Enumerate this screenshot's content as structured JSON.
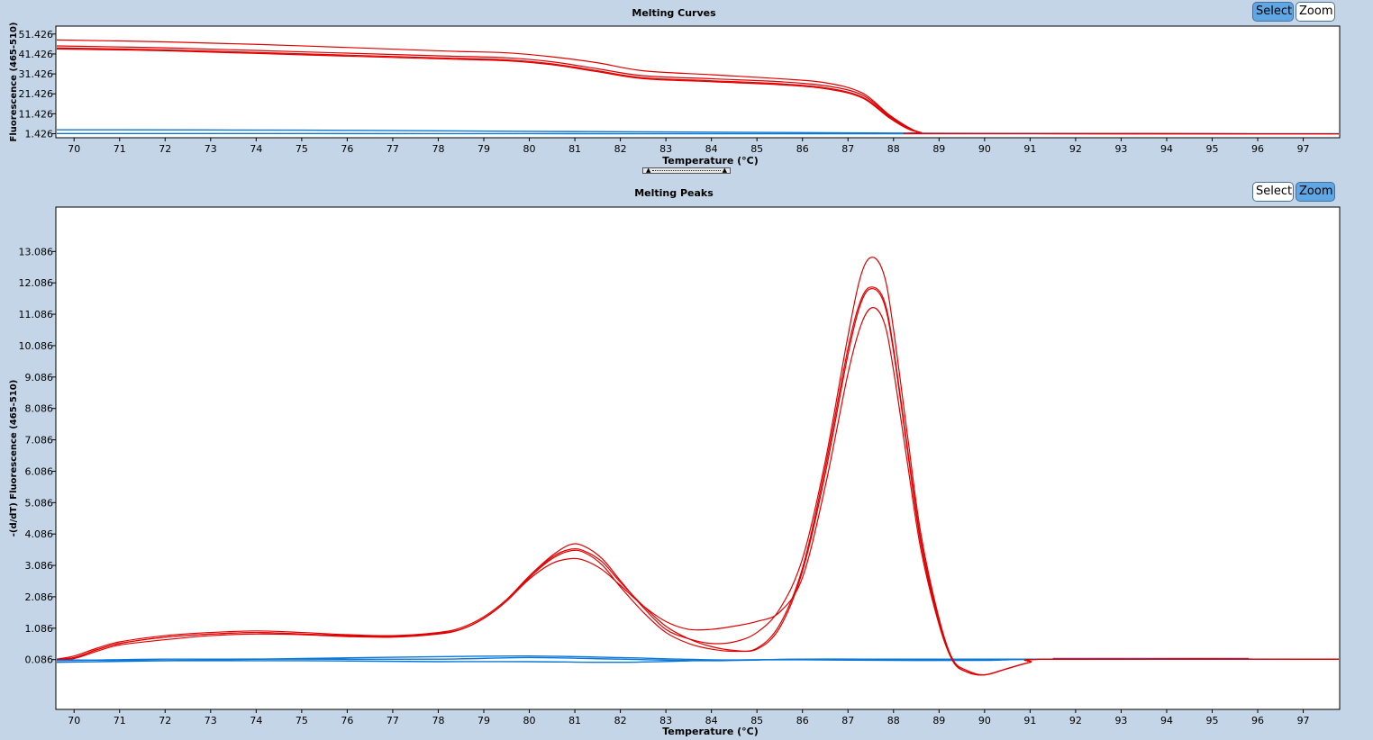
{
  "top_panel": {
    "title": "Melting Curves",
    "select_label": "Select",
    "zoom_label": "Zoom",
    "active_mode": "select"
  },
  "bottom_panel": {
    "title": "Melting Peaks",
    "select_label": "Select",
    "zoom_label": "Zoom",
    "active_mode": "zoom"
  },
  "colors": {
    "background": "#c3d5e6",
    "sample_red": "#e00000",
    "sample_blue": "#0a78d8",
    "sample_purple": "#8040a0",
    "button_active": "#5fa6e5"
  },
  "chart_data": [
    {
      "type": "line",
      "title": "Melting Curves",
      "xlabel": "Temperature (°C)",
      "ylabel": "Fluorescence (465-510)",
      "xlim": [
        69.6,
        97.8
      ],
      "ylim": [
        -0.6,
        55.4
      ],
      "x_ticks": [
        70,
        71,
        72,
        73,
        74,
        75,
        76,
        77,
        78,
        79,
        80,
        81,
        82,
        83,
        84,
        85,
        86,
        87,
        88,
        89,
        90,
        91,
        92,
        93,
        94,
        95,
        96,
        97
      ],
      "y_ticks": [
        "1.426",
        "11.426",
        "21.426",
        "31.426",
        "41.426",
        "51.426"
      ],
      "y_tick_values": [
        1.426,
        11.426,
        21.426,
        31.426,
        41.426,
        51.426
      ],
      "series": [
        {
          "color": "red",
          "x": [
            69.5,
            72,
            75,
            78,
            79.5,
            80.5,
            81.5,
            82.5,
            84,
            85.5,
            86.5,
            87.3,
            87.9,
            88.3,
            88.6,
            89,
            97.8
          ],
          "y": [
            48.5,
            47.5,
            45.5,
            43,
            42,
            40,
            37,
            33,
            31,
            29,
            27,
            22,
            11,
            5,
            2,
            1.5,
            1.4
          ]
        },
        {
          "color": "red",
          "x": [
            69.5,
            72,
            75,
            78,
            79.5,
            80.5,
            81.5,
            82.5,
            84,
            85.5,
            86.5,
            87.3,
            87.9,
            88.3,
            88.6,
            89,
            97.8
          ],
          "y": [
            45.5,
            44.5,
            42.5,
            40.5,
            39.5,
            37.5,
            34,
            30.5,
            29,
            27.5,
            25.5,
            21,
            10.5,
            4.5,
            2,
            1.5,
            1.4
          ]
        },
        {
          "color": "red",
          "x": [
            69.5,
            72,
            75,
            78,
            79.5,
            80.5,
            81.5,
            82.5,
            84,
            85.5,
            86.5,
            87.3,
            87.9,
            88.3,
            88.6,
            89,
            97.8
          ],
          "y": [
            44.5,
            43.5,
            41.5,
            39.5,
            38.5,
            36.5,
            33,
            29.5,
            28,
            26.5,
            24.5,
            20,
            10,
            4.5,
            2,
            1.5,
            1.4
          ]
        },
        {
          "color": "red",
          "x": [
            69.5,
            72,
            75,
            78,
            79.5,
            80.5,
            81.5,
            82.5,
            84,
            85.5,
            86.5,
            87.3,
            87.9,
            88.3,
            88.6,
            89,
            97.8
          ],
          "y": [
            44,
            43,
            41,
            39,
            38,
            36,
            32.5,
            29,
            27.5,
            26,
            24,
            19.5,
            9.5,
            4,
            2,
            1.5,
            1.4
          ]
        },
        {
          "color": "blue",
          "x": [
            69.5,
            75,
            80,
            83,
            89,
            97.8
          ],
          "y": [
            3.4,
            3.2,
            2.6,
            2.3,
            1.6,
            1.4
          ]
        },
        {
          "color": "blue",
          "x": [
            69.5,
            75,
            80,
            85,
            97.8
          ],
          "y": [
            1.5,
            1.5,
            1.45,
            1.4,
            1.4
          ]
        }
      ]
    },
    {
      "type": "line",
      "title": "Melting Peaks",
      "xlabel": "Temperature (°C)",
      "ylabel": "-(d/dT) Fluorescence (465-510)",
      "xlim": [
        69.6,
        97.8
      ],
      "ylim": [
        -1.5,
        14.5
      ],
      "x_ticks": [
        70,
        71,
        72,
        73,
        74,
        75,
        76,
        77,
        78,
        79,
        80,
        81,
        82,
        83,
        84,
        85,
        86,
        87,
        88,
        89,
        90,
        91,
        92,
        93,
        94,
        95,
        96,
        97
      ],
      "y_ticks": [
        "0.086",
        "1.086",
        "2.086",
        "3.086",
        "4.086",
        "5.086",
        "6.086",
        "7.086",
        "8.086",
        "9.086",
        "10.086",
        "11.086",
        "12.086",
        "13.086"
      ],
      "y_tick_values": [
        0.086,
        1.086,
        2.086,
        3.086,
        4.086,
        5.086,
        6.086,
        7.086,
        8.086,
        9.086,
        10.086,
        11.086,
        12.086,
        13.086
      ],
      "series": [
        {
          "color": "red",
          "x": [
            69.6,
            70,
            70.5,
            71,
            72,
            73,
            74,
            75,
            76,
            77,
            78,
            78.5,
            79,
            79.5,
            80,
            80.5,
            80.9,
            81.2,
            81.6,
            82,
            82.5,
            83,
            83.5,
            84,
            84.5,
            85,
            85.5,
            86,
            86.5,
            87,
            87.3,
            87.55,
            87.8,
            88,
            88.3,
            88.6,
            89,
            89.3,
            89.6,
            90,
            90.5,
            91,
            91.5,
            97.8
          ],
          "y": [
            0.1,
            0.2,
            0.45,
            0.65,
            0.85,
            0.95,
            1.0,
            0.95,
            0.88,
            0.85,
            0.95,
            1.1,
            1.45,
            2.0,
            2.75,
            3.4,
            3.75,
            3.7,
            3.3,
            2.6,
            1.75,
            1.05,
            0.75,
            0.6,
            0.65,
            0.95,
            1.7,
            3.3,
            6.4,
            10.4,
            12.4,
            12.9,
            12.3,
            10.6,
            7.3,
            4.1,
            1.4,
            0.1,
            -0.25,
            -0.4,
            -0.2,
            0.0,
            0.1,
            0.1
          ]
        },
        {
          "color": "red",
          "x": [
            69.6,
            70,
            70.5,
            71,
            72,
            73,
            74,
            75,
            76,
            77,
            78,
            78.5,
            79,
            79.5,
            80,
            80.5,
            80.9,
            81.2,
            81.6,
            82,
            82.5,
            83,
            83.5,
            84,
            84.5,
            85,
            85.5,
            86,
            86.5,
            87,
            87.3,
            87.55,
            87.8,
            88,
            88.3,
            88.6,
            89,
            89.3,
            89.6,
            90,
            90.5,
            91,
            91.5,
            97.8
          ],
          "y": [
            0.1,
            0.15,
            0.4,
            0.6,
            0.8,
            0.9,
            0.95,
            0.9,
            0.85,
            0.82,
            0.92,
            1.05,
            1.4,
            1.95,
            2.7,
            3.3,
            3.55,
            3.5,
            3.1,
            2.4,
            1.6,
            0.95,
            0.6,
            0.42,
            0.35,
            0.45,
            1.2,
            3.0,
            6.2,
            10.0,
            11.6,
            11.95,
            11.5,
            10.0,
            6.9,
            3.9,
            1.3,
            0.05,
            -0.3,
            -0.4,
            -0.2,
            0.0,
            0.1,
            0.1
          ]
        },
        {
          "color": "red",
          "x": [
            69.6,
            70,
            70.5,
            71,
            72,
            73,
            74,
            75,
            76,
            77,
            78,
            78.5,
            79,
            79.5,
            80,
            80.5,
            80.9,
            81.2,
            81.6,
            82,
            82.5,
            83,
            83.5,
            84,
            84.5,
            85,
            85.5,
            86,
            86.5,
            87,
            87.3,
            87.55,
            87.8,
            88,
            88.3,
            88.6,
            89,
            89.3,
            89.6,
            90,
            90.5,
            91,
            91.5,
            97.8
          ],
          "y": [
            0.1,
            0.15,
            0.4,
            0.6,
            0.8,
            0.9,
            0.95,
            0.9,
            0.85,
            0.82,
            0.92,
            1.05,
            1.4,
            1.95,
            2.7,
            3.35,
            3.6,
            3.55,
            3.2,
            2.55,
            1.8,
            1.15,
            0.75,
            0.5,
            0.38,
            0.42,
            1.1,
            2.9,
            6.0,
            9.8,
            11.5,
            11.9,
            11.4,
            9.9,
            6.8,
            3.8,
            1.25,
            0.05,
            -0.3,
            -0.4,
            -0.2,
            0.0,
            0.1,
            0.1
          ]
        },
        {
          "color": "red",
          "x": [
            69.6,
            70,
            70.5,
            71,
            72,
            73,
            74,
            75,
            76,
            77,
            78,
            78.5,
            79,
            79.5,
            80,
            80.5,
            80.9,
            81.2,
            81.6,
            82,
            82.5,
            83,
            83.5,
            84,
            84.5,
            85,
            85.5,
            86,
            86.5,
            87,
            87.3,
            87.55,
            87.8,
            88,
            88.3,
            88.6,
            89,
            89.3,
            89.6,
            90,
            90.5,
            91,
            91.5,
            97.8
          ],
          "y": [
            0.1,
            0.12,
            0.35,
            0.55,
            0.72,
            0.85,
            0.9,
            0.88,
            0.82,
            0.8,
            0.9,
            1.05,
            1.4,
            1.95,
            2.65,
            3.15,
            3.3,
            3.25,
            2.95,
            2.45,
            1.8,
            1.3,
            1.05,
            1.05,
            1.15,
            1.3,
            1.6,
            2.7,
            5.6,
            9.2,
            10.8,
            11.3,
            10.8,
            9.3,
            6.4,
            3.6,
            1.2,
            0.05,
            -0.3,
            -0.4,
            -0.2,
            0.0,
            0.1,
            0.1
          ]
        },
        {
          "color": "blue",
          "x": [
            69.6,
            72,
            75,
            78,
            80,
            82,
            84,
            86,
            88,
            90,
            91.5,
            97.8
          ],
          "y": [
            0.05,
            0.1,
            0.1,
            0.1,
            0.15,
            0.1,
            0.05,
            0.1,
            0.08,
            0.08,
            0.1,
            0.1
          ]
        },
        {
          "color": "blue",
          "x": [
            69.6,
            72,
            75,
            78,
            80,
            82,
            84,
            86,
            88,
            90,
            91.5,
            97.8
          ],
          "y": [
            0.0,
            0.05,
            0.12,
            0.18,
            0.2,
            0.15,
            0.08,
            0.08,
            0.06,
            0.06,
            0.1,
            0.1
          ]
        },
        {
          "color": "blue",
          "x": [
            69.6,
            72,
            75,
            78,
            80,
            82,
            84,
            86,
            88,
            90,
            91.5,
            97.8
          ],
          "y": [
            0.08,
            0.05,
            0.05,
            0.02,
            0.02,
            0.0,
            0.06,
            0.1,
            0.1,
            0.1,
            0.1,
            0.1
          ]
        },
        {
          "color": "purple",
          "x": [
            91.5,
            95.8
          ],
          "y": [
            0.12,
            0.12
          ]
        }
      ]
    }
  ]
}
